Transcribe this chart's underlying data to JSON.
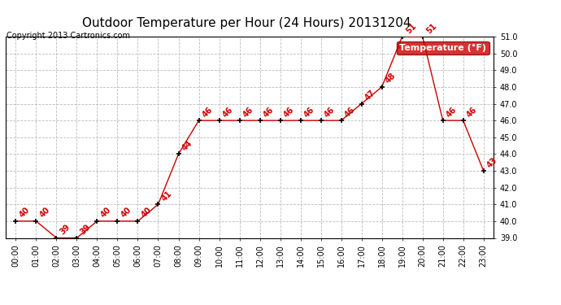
{
  "title": "Outdoor Temperature per Hour (24 Hours) 20131204",
  "copyright": "Copyright 2013 Cartronics.com",
  "legend_label": "Temperature (°F)",
  "hours": [
    "00:00",
    "01:00",
    "02:00",
    "03:00",
    "04:00",
    "05:00",
    "06:00",
    "07:00",
    "08:00",
    "09:00",
    "10:00",
    "11:00",
    "12:00",
    "13:00",
    "14:00",
    "15:00",
    "16:00",
    "17:00",
    "18:00",
    "19:00",
    "20:00",
    "21:00",
    "22:00",
    "23:00"
  ],
  "temperatures": [
    40,
    40,
    39,
    39,
    40,
    40,
    40,
    41,
    44,
    46,
    46,
    46,
    46,
    46,
    46,
    46,
    46,
    47,
    48,
    51,
    51,
    46,
    46,
    43
  ],
  "ylim": [
    39.0,
    51.0
  ],
  "yticks": [
    39.0,
    40.0,
    41.0,
    42.0,
    43.0,
    44.0,
    45.0,
    46.0,
    47.0,
    48.0,
    49.0,
    50.0,
    51.0
  ],
  "line_color": "#cc0000",
  "marker_color": "#000000",
  "label_color": "#cc0000",
  "bg_color": "#ffffff",
  "grid_color": "#bbbbbb",
  "title_fontsize": 11,
  "copyright_fontsize": 7,
  "label_fontsize": 7,
  "tick_fontsize": 7,
  "legend_bg": "#cc0000",
  "legend_text_color": "#ffffff",
  "legend_fontsize": 8
}
